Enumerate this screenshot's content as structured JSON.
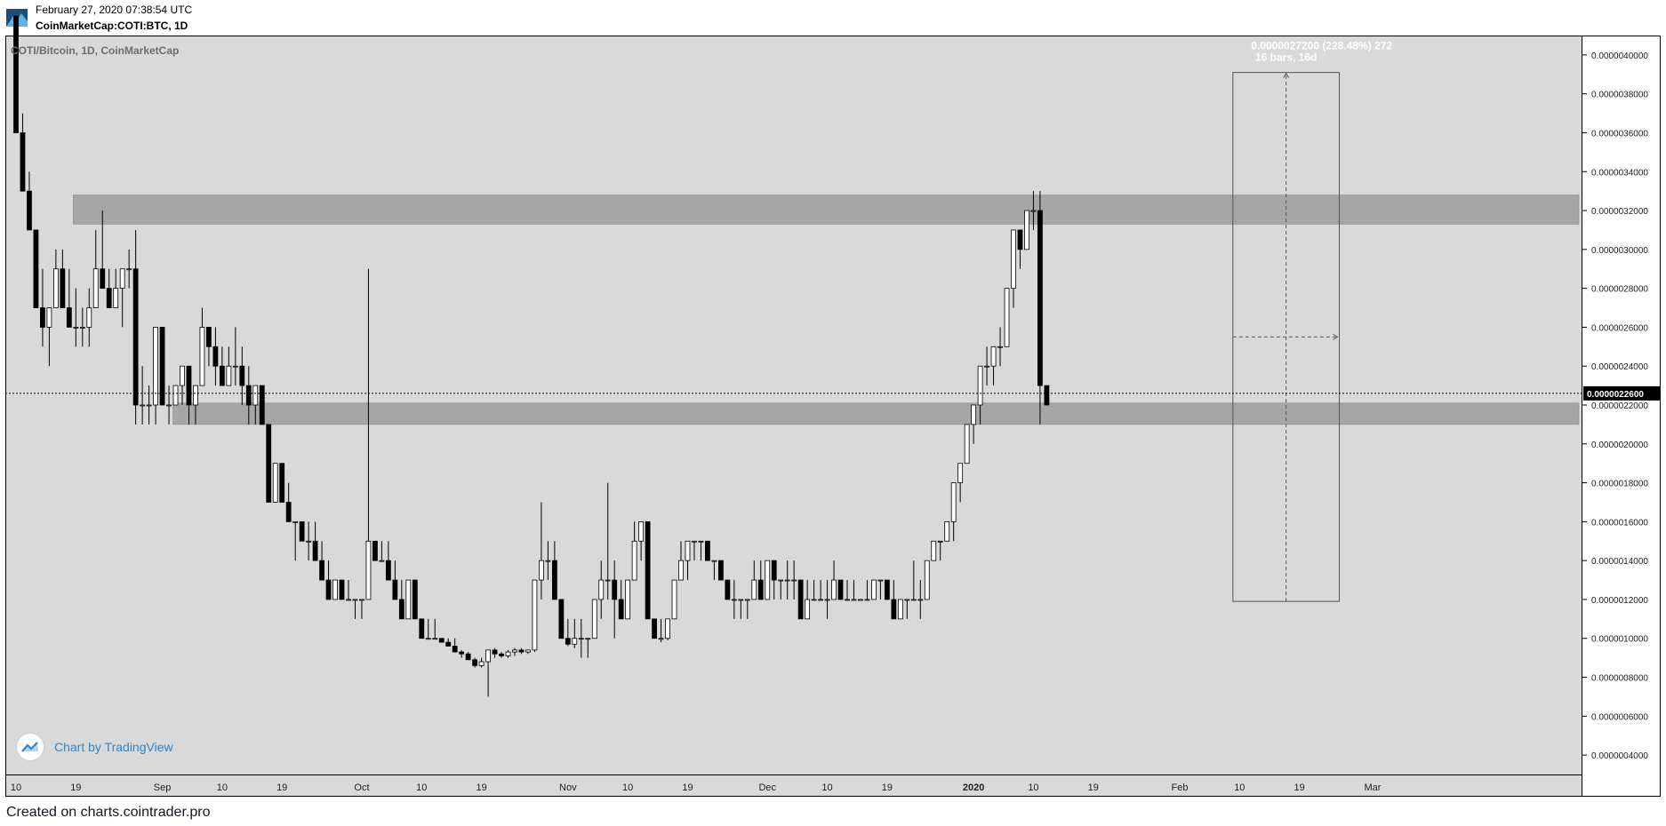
{
  "header": {
    "date": "February 27, 2020 07:38:54 UTC",
    "symbol": "CoinMarketCap:COTI:BTC, 1D"
  },
  "footer": {
    "credit": "Created on charts.cointrader.pro"
  },
  "branding": {
    "tv_label": "Chart by TradingView"
  },
  "colors": {
    "background": "#d9d9d9",
    "zone": "#a6a6a6",
    "price_label_bg": "#000000",
    "tv_blue": "#2e86c8"
  },
  "chart_data": {
    "type": "candlestick",
    "title": "COTI/Bitcoin, 1D, CoinMarketCap",
    "price_label": "0.0000022600",
    "ylim": [
      3e-07,
      4.1e-06
    ],
    "y_ticks": [
      "0.0000040000",
      "0.0000038000",
      "0.0000036000",
      "0.0000034000",
      "0.0000032000",
      "0.0000030000",
      "0.0000028000",
      "0.0000026000",
      "0.0000024000",
      "0.0000022000",
      "0.0000020000",
      "0.0000018000",
      "0.0000016000",
      "0.0000014000",
      "0.0000012000",
      "0.0000010000",
      "0.0000008000",
      "0.0000006000",
      "0.0000004000"
    ],
    "x_ticks": [
      {
        "label": "10",
        "day": 0
      },
      {
        "label": "19",
        "day": 9
      },
      {
        "label": "Sep",
        "day": 22
      },
      {
        "label": "10",
        "day": 31
      },
      {
        "label": "19",
        "day": 40
      },
      {
        "label": "Oct",
        "day": 52
      },
      {
        "label": "10",
        "day": 61
      },
      {
        "label": "19",
        "day": 70
      },
      {
        "label": "Nov",
        "day": 83
      },
      {
        "label": "10",
        "day": 92
      },
      {
        "label": "19",
        "day": 101
      },
      {
        "label": "Dec",
        "day": 113
      },
      {
        "label": "10",
        "day": 122
      },
      {
        "label": "19",
        "day": 131
      },
      {
        "label": "2020",
        "day": 144
      },
      {
        "label": "10",
        "day": 153
      },
      {
        "label": "19",
        "day": 162
      },
      {
        "label": "Feb",
        "day": 175
      },
      {
        "label": "10",
        "day": 184
      },
      {
        "label": "19",
        "day": 193
      },
      {
        "label": "Mar",
        "day": 204
      }
    ],
    "zones": [
      {
        "from_day": 9,
        "top": 3.28e-06,
        "bottom": 3.13e-06
      },
      {
        "from_day": 24,
        "top": 2.21e-06,
        "bottom": 2.1e-06
      }
    ],
    "measure": {
      "line1": "0.0000027200 (228.48%) 272",
      "line2": "16 bars, 16d",
      "start_day": 183,
      "end_day": 199,
      "low": 1.19e-06,
      "high": 3.91e-06,
      "mid": 2.55e-06
    },
    "last_price": 2.26e-06,
    "day0": "2019-08-10",
    "candles": [
      [
        4.2e-06,
        4.2e-06,
        3.6e-06,
        3.6e-06
      ],
      [
        3.6e-06,
        3.7e-06,
        3.3e-06,
        3.3e-06
      ],
      [
        3.3e-06,
        3.4e-06,
        3.1e-06,
        3.1e-06
      ],
      [
        3.1e-06,
        3.1e-06,
        2.7e-06,
        2.7e-06
      ],
      [
        2.7e-06,
        2.9e-06,
        2.5e-06,
        2.6e-06
      ],
      [
        2.6e-06,
        2.7e-06,
        2.4e-06,
        2.7e-06
      ],
      [
        2.7e-06,
        3e-06,
        2.7e-06,
        2.9e-06
      ],
      [
        2.9e-06,
        3e-06,
        2.7e-06,
        2.7e-06
      ],
      [
        2.7e-06,
        2.9e-06,
        2.6e-06,
        2.6e-06
      ],
      [
        2.6e-06,
        2.8e-06,
        2.5e-06,
        2.6e-06
      ],
      [
        2.6e-06,
        2.7e-06,
        2.5e-06,
        2.6e-06
      ],
      [
        2.6e-06,
        2.8e-06,
        2.5e-06,
        2.7e-06
      ],
      [
        2.7e-06,
        3.1e-06,
        2.7e-06,
        2.9e-06
      ],
      [
        2.9e-06,
        3.2e-06,
        2.8e-06,
        2.8e-06
      ],
      [
        2.8e-06,
        2.9e-06,
        2.7e-06,
        2.7e-06
      ],
      [
        2.7e-06,
        2.9e-06,
        2.7e-06,
        2.8e-06
      ],
      [
        2.8e-06,
        2.9e-06,
        2.6e-06,
        2.9e-06
      ],
      [
        2.9e-06,
        3e-06,
        2.8e-06,
        2.9e-06
      ],
      [
        2.9e-06,
        3.1e-06,
        2.1e-06,
        2.2e-06
      ],
      [
        2.2e-06,
        2.4e-06,
        2.1e-06,
        2.2e-06
      ],
      [
        2.2e-06,
        2.3e-06,
        2.1e-06,
        2.2e-06
      ],
      [
        2.2e-06,
        2.6e-06,
        2.1e-06,
        2.6e-06
      ],
      [
        2.6e-06,
        2.6e-06,
        2.2e-06,
        2.2e-06
      ],
      [
        2.2e-06,
        2.3e-06,
        2.1e-06,
        2.2e-06
      ],
      [
        2.2e-06,
        2.3e-06,
        2.2e-06,
        2.3e-06
      ],
      [
        2.3e-06,
        2.4e-06,
        2.2e-06,
        2.4e-06
      ],
      [
        2.4e-06,
        2.4e-06,
        2.1e-06,
        2.2e-06
      ],
      [
        2.2e-06,
        2.3e-06,
        2.1e-06,
        2.3e-06
      ],
      [
        2.3e-06,
        2.7e-06,
        2.3e-06,
        2.6e-06
      ],
      [
        2.6e-06,
        2.6e-06,
        2.4e-06,
        2.5e-06
      ],
      [
        2.5e-06,
        2.6e-06,
        2.3e-06,
        2.4e-06
      ],
      [
        2.4e-06,
        2.5e-06,
        2.3e-06,
        2.3e-06
      ],
      [
        2.3e-06,
        2.5e-06,
        2.3e-06,
        2.4e-06
      ],
      [
        2.4e-06,
        2.6e-06,
        2.3e-06,
        2.4e-06
      ],
      [
        2.4e-06,
        2.5e-06,
        2.2e-06,
        2.3e-06
      ],
      [
        2.3e-06,
        2.4e-06,
        2.1e-06,
        2.2e-06
      ],
      [
        2.2e-06,
        2.3e-06,
        2.1e-06,
        2.3e-06
      ],
      [
        2.3e-06,
        2.3e-06,
        2.1e-06,
        2.1e-06
      ],
      [
        2.1e-06,
        2.1e-06,
        1.7e-06,
        1.7e-06
      ],
      [
        1.7e-06,
        1.9e-06,
        1.7e-06,
        1.9e-06
      ],
      [
        1.9e-06,
        1.9e-06,
        1.7e-06,
        1.7e-06
      ],
      [
        1.7e-06,
        1.8e-06,
        1.6e-06,
        1.6e-06
      ],
      [
        1.6e-06,
        1.6e-06,
        1.4e-06,
        1.6e-06
      ],
      [
        1.6e-06,
        1.6e-06,
        1.5e-06,
        1.5e-06
      ],
      [
        1.5e-06,
        1.6e-06,
        1.4e-06,
        1.5e-06
      ],
      [
        1.5e-06,
        1.6e-06,
        1.4e-06,
        1.4e-06
      ],
      [
        1.4e-06,
        1.5e-06,
        1.3e-06,
        1.3e-06
      ],
      [
        1.3e-06,
        1.4e-06,
        1.2e-06,
        1.2e-06
      ],
      [
        1.2e-06,
        1.3e-06,
        1.2e-06,
        1.3e-06
      ],
      [
        1.3e-06,
        1.3e-06,
        1.2e-06,
        1.2e-06
      ],
      [
        1.2e-06,
        1.3e-06,
        1.2e-06,
        1.2e-06
      ],
      [
        1.2e-06,
        1.2e-06,
        1.1e-06,
        1.2e-06
      ],
      [
        1.2e-06,
        1.2e-06,
        1.1e-06,
        1.2e-06
      ],
      [
        1.2e-06,
        2.9e-06,
        1.2e-06,
        1.5e-06
      ],
      [
        1.5e-06,
        1.5e-06,
        1.4e-06,
        1.4e-06
      ],
      [
        1.4e-06,
        1.5e-06,
        1.4e-06,
        1.4e-06
      ],
      [
        1.4e-06,
        1.5e-06,
        1.3e-06,
        1.3e-06
      ],
      [
        1.3e-06,
        1.4e-06,
        1.2e-06,
        1.2e-06
      ],
      [
        1.2e-06,
        1.3e-06,
        1.1e-06,
        1.1e-06
      ],
      [
        1.1e-06,
        1.3e-06,
        1.1e-06,
        1.3e-06
      ],
      [
        1.3e-06,
        1.3e-06,
        1.1e-06,
        1.1e-06
      ],
      [
        1.1e-06,
        1.1e-06,
        1e-06,
        1e-06
      ],
      [
        1e-06,
        1.1e-06,
        1e-06,
        1e-06
      ],
      [
        1e-06,
        1.1e-06,
        1e-06,
        1e-06
      ],
      [
        1e-06,
        1e-06,
        9.8e-07,
        9.8e-07
      ],
      [
        9.8e-07,
        1e-06,
        9.6e-07,
        9.6e-07
      ],
      [
        9.6e-07,
        1e-06,
        9.3e-07,
        9.3e-07
      ],
      [
        9.3e-07,
        9.4e-07,
        9e-07,
        9.2e-07
      ],
      [
        9.2e-07,
        9.3e-07,
        8.9e-07,
        8.9e-07
      ],
      [
        8.9e-07,
        9e-07,
        8.5e-07,
        8.6e-07
      ],
      [
        8.6e-07,
        9e-07,
        8.5e-07,
        8.8e-07
      ],
      [
        8.8e-07,
        9.4e-07,
        7e-07,
        9.4e-07
      ],
      [
        9.4e-07,
        9.5e-07,
        9e-07,
        9.2e-07
      ],
      [
        9.2e-07,
        9.3e-07,
        9e-07,
        9.1e-07
      ],
      [
        9.1e-07,
        9.4e-07,
        9e-07,
        9.3e-07
      ],
      [
        9.3e-07,
        9.5e-07,
        9.1e-07,
        9.4e-07
      ],
      [
        9.4e-07,
        9.5e-07,
        9.2e-07,
        9.3e-07
      ],
      [
        9.3e-07,
        9.4e-07,
        9.2e-07,
        9.4e-07
      ],
      [
        9.4e-07,
        1.3e-06,
        9.3e-07,
        1.3e-06
      ],
      [
        1.3e-06,
        1.7e-06,
        1.2e-06,
        1.4e-06
      ],
      [
        1.4e-06,
        1.5e-06,
        1.3e-06,
        1.4e-06
      ],
      [
        1.4e-06,
        1.5e-06,
        1.2e-06,
        1.2e-06
      ],
      [
        1.2e-06,
        1.2e-06,
        1e-06,
        1e-06
      ],
      [
        1e-06,
        1.1e-06,
        9.6e-07,
        9.7e-07
      ],
      [
        9.7e-07,
        1.1e-06,
        9.5e-07,
        1e-06
      ],
      [
        1e-06,
        1.1e-06,
        9e-07,
        1e-06
      ],
      [
        1e-06,
        1e-06,
        9e-07,
        1e-06
      ],
      [
        1e-06,
        1.2e-06,
        1e-06,
        1.2e-06
      ],
      [
        1.2e-06,
        1.4e-06,
        1.1e-06,
        1.3e-06
      ],
      [
        1.3e-06,
        1.8e-06,
        1.2e-06,
        1.3e-06
      ],
      [
        1.3e-06,
        1.4e-06,
        1e-06,
        1.2e-06
      ],
      [
        1.2e-06,
        1.3e-06,
        1.1e-06,
        1.1e-06
      ],
      [
        1.1e-06,
        1.3e-06,
        1.1e-06,
        1.3e-06
      ],
      [
        1.3e-06,
        1.6e-06,
        1.3e-06,
        1.5e-06
      ],
      [
        1.5e-06,
        1.6e-06,
        1.4e-06,
        1.6e-06
      ],
      [
        1.6e-06,
        1.6e-06,
        1.1e-06,
        1.1e-06
      ],
      [
        1.1e-06,
        1.1e-06,
        1e-06,
        1e-06
      ],
      [
        1e-06,
        1.1e-06,
        9.8e-07,
        1e-06
      ],
      [
        1e-06,
        1.1e-06,
        9.9e-07,
        1.1e-06
      ],
      [
        1.1e-06,
        1.3e-06,
        1.1e-06,
        1.3e-06
      ],
      [
        1.3e-06,
        1.5e-06,
        1.3e-06,
        1.4e-06
      ],
      [
        1.4e-06,
        1.5e-06,
        1.3e-06,
        1.5e-06
      ],
      [
        1.5e-06,
        1.5e-06,
        1.4e-06,
        1.5e-06
      ],
      [
        1.5e-06,
        1.5e-06,
        1.4e-06,
        1.5e-06
      ],
      [
        1.5e-06,
        1.5e-06,
        1.4e-06,
        1.4e-06
      ],
      [
        1.4e-06,
        1.4e-06,
        1.3e-06,
        1.4e-06
      ],
      [
        1.4e-06,
        1.4e-06,
        1.3e-06,
        1.3e-06
      ],
      [
        1.3e-06,
        1.3e-06,
        1.2e-06,
        1.2e-06
      ],
      [
        1.2e-06,
        1.3e-06,
        1.1e-06,
        1.2e-06
      ],
      [
        1.2e-06,
        1.2e-06,
        1.1e-06,
        1.2e-06
      ],
      [
        1.2e-06,
        1.2e-06,
        1.1e-06,
        1.2e-06
      ],
      [
        1.2e-06,
        1.4e-06,
        1.2e-06,
        1.3e-06
      ],
      [
        1.3e-06,
        1.4e-06,
        1.2e-06,
        1.2e-06
      ],
      [
        1.2e-06,
        1.4e-06,
        1.2e-06,
        1.4e-06
      ],
      [
        1.4e-06,
        1.4e-06,
        1.2e-06,
        1.3e-06
      ],
      [
        1.3e-06,
        1.3e-06,
        1.2e-06,
        1.3e-06
      ],
      [
        1.3e-06,
        1.4e-06,
        1.2e-06,
        1.3e-06
      ],
      [
        1.3e-06,
        1.4e-06,
        1.2e-06,
        1.3e-06
      ],
      [
        1.3e-06,
        1.3e-06,
        1.1e-06,
        1.1e-06
      ],
      [
        1.1e-06,
        1.3e-06,
        1.1e-06,
        1.2e-06
      ],
      [
        1.2e-06,
        1.3e-06,
        1.2e-06,
        1.2e-06
      ],
      [
        1.2e-06,
        1.3e-06,
        1.2e-06,
        1.2e-06
      ],
      [
        1.2e-06,
        1.3e-06,
        1.1e-06,
        1.2e-06
      ],
      [
        1.2e-06,
        1.4e-06,
        1.2e-06,
        1.3e-06
      ],
      [
        1.3e-06,
        1.3e-06,
        1.2e-06,
        1.2e-06
      ],
      [
        1.2e-06,
        1.3e-06,
        1.2e-06,
        1.2e-06
      ],
      [
        1.2e-06,
        1.3e-06,
        1.2e-06,
        1.2e-06
      ],
      [
        1.2e-06,
        1.2e-06,
        1.2e-06,
        1.2e-06
      ],
      [
        1.2e-06,
        1.3e-06,
        1.2e-06,
        1.2e-06
      ],
      [
        1.2e-06,
        1.3e-06,
        1.2e-06,
        1.3e-06
      ],
      [
        1.3e-06,
        1.3e-06,
        1.2e-06,
        1.3e-06
      ],
      [
        1.3e-06,
        1.3e-06,
        1.2e-06,
        1.2e-06
      ],
      [
        1.2e-06,
        1.3e-06,
        1.1e-06,
        1.1e-06
      ],
      [
        1.1e-06,
        1.2e-06,
        1.1e-06,
        1.2e-06
      ],
      [
        1.2e-06,
        1.2e-06,
        1.1e-06,
        1.2e-06
      ],
      [
        1.2e-06,
        1.4e-06,
        1.2e-06,
        1.2e-06
      ],
      [
        1.2e-06,
        1.3e-06,
        1.1e-06,
        1.2e-06
      ],
      [
        1.2e-06,
        1.4e-06,
        1.2e-06,
        1.4e-06
      ],
      [
        1.4e-06,
        1.5e-06,
        1.4e-06,
        1.5e-06
      ],
      [
        1.5e-06,
        1.5e-06,
        1.4e-06,
        1.5e-06
      ],
      [
        1.5e-06,
        1.6e-06,
        1.5e-06,
        1.6e-06
      ],
      [
        1.6e-06,
        1.8e-06,
        1.5e-06,
        1.8e-06
      ],
      [
        1.8e-06,
        1.9e-06,
        1.7e-06,
        1.9e-06
      ],
      [
        1.9e-06,
        2.1e-06,
        1.9e-06,
        2.1e-06
      ],
      [
        2.1e-06,
        2.2e-06,
        2e-06,
        2.2e-06
      ],
      [
        2.2e-06,
        2.4e-06,
        2.1e-06,
        2.4e-06
      ],
      [
        2.4e-06,
        2.5e-06,
        2.3e-06,
        2.4e-06
      ],
      [
        2.4e-06,
        2.5e-06,
        2.3e-06,
        2.5e-06
      ],
      [
        2.5e-06,
        2.6e-06,
        2.4e-06,
        2.5e-06
      ],
      [
        2.5e-06,
        2.8e-06,
        2.5e-06,
        2.8e-06
      ],
      [
        2.8e-06,
        3.1e-06,
        2.7e-06,
        3.1e-06
      ],
      [
        3.1e-06,
        3.1e-06,
        2.9e-06,
        3e-06
      ],
      [
        3e-06,
        3.2e-06,
        3e-06,
        3.2e-06
      ],
      [
        3.2e-06,
        3.3e-06,
        3.1e-06,
        3.2e-06
      ],
      [
        3.2e-06,
        3.3e-06,
        2.1e-06,
        2.3e-06
      ],
      [
        2.3e-06,
        2.3e-06,
        2.2e-06,
        2.2e-06
      ]
    ]
  }
}
